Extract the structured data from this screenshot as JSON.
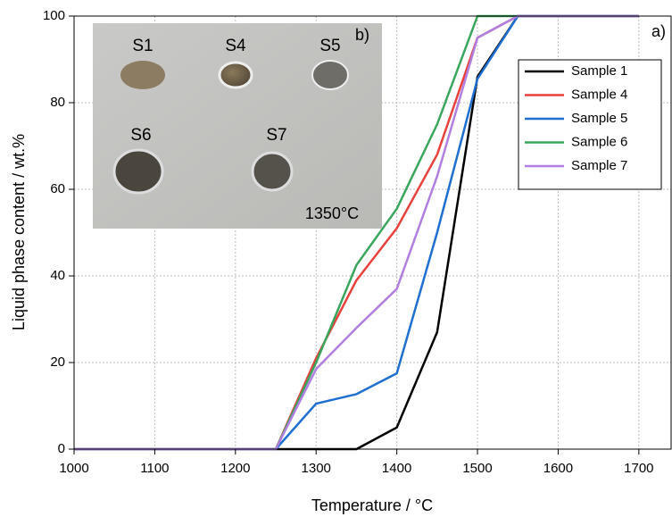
{
  "chart_data": {
    "type": "line",
    "panel_label": "a)",
    "xlabel": "Temperature / °C",
    "ylabel": "Liquid phase content / wt.%",
    "x": [
      1000,
      1250,
      1300,
      1350,
      1400,
      1450,
      1500,
      1550,
      1700
    ],
    "series": [
      {
        "name": "Sample 1",
        "color": "#000000",
        "values": [
          0,
          0,
          0,
          0,
          5,
          27,
          86,
          100,
          100
        ]
      },
      {
        "name": "Sample 4",
        "color": "#e8413c",
        "values": [
          0,
          0,
          21,
          39,
          51,
          68,
          95,
          100,
          100
        ]
      },
      {
        "name": "Sample 5",
        "color": "#1f6fd1",
        "values": [
          0,
          0,
          10.5,
          12.7,
          17.5,
          50,
          85.5,
          100,
          100
        ]
      },
      {
        "name": "Sample 6",
        "color": "#3aa55c",
        "values": [
          0,
          0,
          20,
          42.5,
          55.5,
          75,
          100,
          100,
          100
        ]
      },
      {
        "name": "Sample 7",
        "color": "#b07fe0",
        "values": [
          0,
          0,
          18.5,
          28,
          37,
          63,
          95,
          100,
          100
        ]
      }
    ],
    "xlim": [
      1000,
      1740
    ],
    "ylim": [
      0,
      100
    ],
    "xticks": [
      1000,
      1100,
      1200,
      1300,
      1400,
      1500,
      1600,
      1700
    ],
    "yticks": [
      0,
      20,
      40,
      60,
      80,
      100
    ],
    "grid": true,
    "legend": "upper right",
    "inset": {
      "label": "b)",
      "temperature": "1350°C",
      "samples": [
        {
          "label": "S1",
          "color": "#111111"
        },
        {
          "label": "S4",
          "color": "#e8413c"
        },
        {
          "label": "S5",
          "color": "#1f6fd1"
        },
        {
          "label": "S6",
          "color": "#3aa55c"
        },
        {
          "label": "S7",
          "color": "#b07fe0"
        }
      ]
    }
  }
}
